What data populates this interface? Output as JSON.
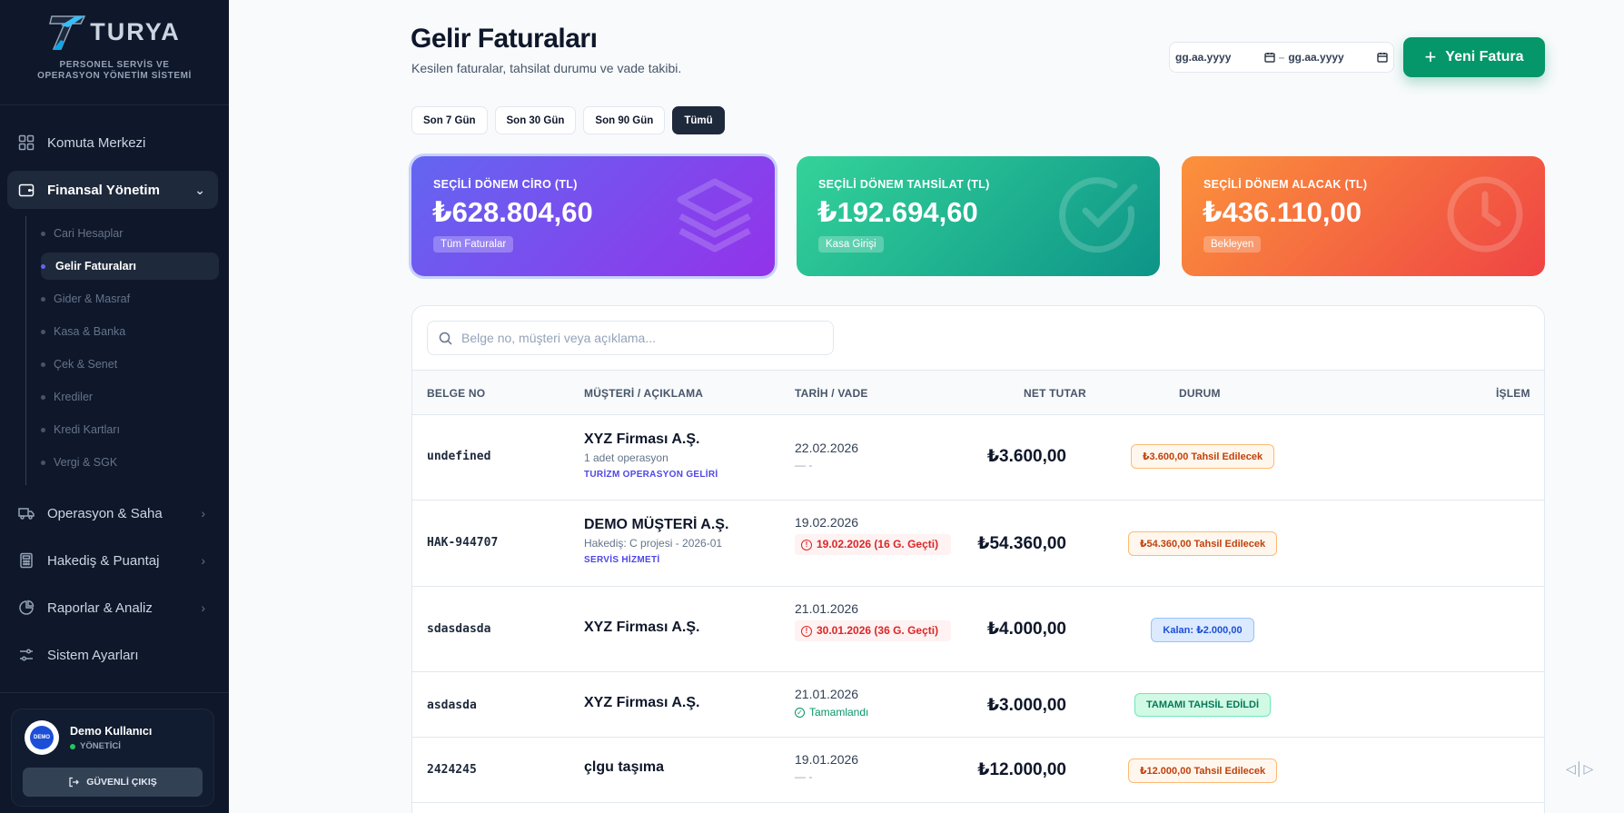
{
  "brand": {
    "name": "TURYA",
    "subtitle": "PERSONEL SERVİS VE OPERASYON YÖNETİM SİSTEMİ"
  },
  "sidebar": {
    "items": [
      {
        "label": "Komuta Merkezi",
        "icon": "grid-icon"
      },
      {
        "label": "Finansal Yönetim",
        "icon": "wallet-icon",
        "active": true
      },
      {
        "label": "Operasyon & Saha",
        "icon": "truck-icon"
      },
      {
        "label": "Hakediş & Puantaj",
        "icon": "calculator-icon"
      },
      {
        "label": "Raporlar & Analiz",
        "icon": "pie-chart-icon"
      },
      {
        "label": "Sistem Ayarları",
        "icon": "sliders-icon"
      }
    ],
    "subitems": [
      "Cari Hesaplar",
      "Gelir Faturaları",
      "Gider & Masraf",
      "Kasa & Banka",
      "Çek & Senet",
      "Krediler",
      "Kredi Kartları",
      "Vergi & SGK"
    ],
    "active_sub": "Gelir Faturaları"
  },
  "user": {
    "avatar_text": "DEMO",
    "name": "Demo Kullanıcı",
    "role": "YÖNETİCİ",
    "logout_label": "GÜVENLİ ÇIKIŞ"
  },
  "header": {
    "title": "Gelir Faturaları",
    "subtitle": "Kesilen faturalar, tahsilat durumu ve vade takibi.",
    "date_from_placeholder": "gg.aa.yyyy",
    "date_to_placeholder": "gg.aa.yyyy",
    "date_separator": "–",
    "new_button": "Yeni Fatura"
  },
  "filters": [
    "Son 7 Gün",
    "Son 30 Gün",
    "Son 90 Gün",
    "Tümü"
  ],
  "active_filter": "Tümü",
  "cards": [
    {
      "label": "SEÇİLİ DÖNEM CİRO (TL)",
      "value": "₺628.804,60",
      "tag": "Tüm Faturalar",
      "color": "#7c3aed"
    },
    {
      "label": "SEÇİLİ DÖNEM TAHSİLAT (TL)",
      "value": "₺192.694,60",
      "tag": "Kasa Girişi",
      "color": "#10b981"
    },
    {
      "label": "SEÇİLİ DÖNEM ALACAK (TL)",
      "value": "₺436.110,00",
      "tag": "Bekleyen",
      "color": "#f97316"
    }
  ],
  "search": {
    "placeholder": "Belge no, müşteri veya açıklama..."
  },
  "table": {
    "headers": {
      "doc_no": "BELGE NO",
      "customer": "MÜŞTERİ / AÇIKLAMA",
      "date": "TARİH / VADE",
      "amount": "NET TUTAR",
      "status": "DURUM",
      "action": "İŞLEM"
    },
    "rows": [
      {
        "doc_no": "undefined",
        "customer": "XYZ Firması A.Ş.",
        "desc": "1 adet operasyon",
        "category": "TURİZM OPERASYON GELİRİ",
        "date": "22.02.2026",
        "due": "— -",
        "amount": "₺3.600,00",
        "status": "₺3.600,00 Tahsil Edilecek"
      },
      {
        "doc_no": "HAK-944707",
        "customer": "DEMO MÜŞTERİ A.Ş.",
        "desc": "Hakediş: C projesi - 2026-01",
        "category": "SERVİS HİZMETİ",
        "date": "19.02.2026",
        "due": "19.02.2026 (16 G. Geçti)",
        "amount": "₺54.360,00",
        "status": "₺54.360,00 Tahsil Edilecek"
      },
      {
        "doc_no": "sdasdasda",
        "customer": "XYZ Firması A.Ş.",
        "date": "21.01.2026",
        "due": "30.01.2026 (36 G. Geçti)",
        "amount": "₺4.000,00",
        "status": "Kalan: ₺2.000,00"
      },
      {
        "doc_no": "asdasda",
        "customer": "XYZ Firması A.Ş.",
        "date": "21.01.2026",
        "due": "Tamamlandı",
        "amount": "₺3.000,00",
        "status": "TAMAMI TAHSİL EDİLDİ"
      },
      {
        "doc_no": "2424245",
        "customer": "çlgu taşıma",
        "date": "19.01.2026",
        "due": "— -",
        "amount": "₺12.000,00",
        "status": "₺12.000,00 Tahsil Edilecek"
      }
    ]
  }
}
